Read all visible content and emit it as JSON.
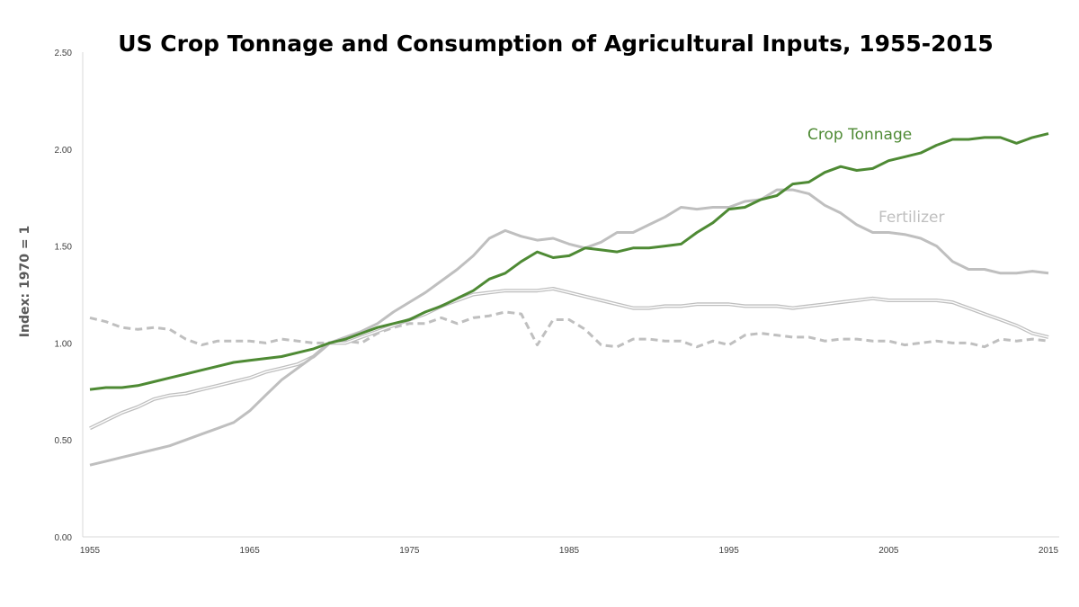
{
  "chart_data": {
    "type": "line",
    "title": "US Crop Tonnage and Consumption of Agricultural Inputs, 1955-2015",
    "xlabel": "",
    "ylabel": "Index: 1970 = 1",
    "xlim": [
      1955,
      2015
    ],
    "ylim": [
      0,
      2.5
    ],
    "y_ticks": [
      "0.00",
      "0.50",
      "1.00",
      "1.50",
      "2.00",
      "2.50"
    ],
    "x_ticks": [
      "1955",
      "1965",
      "1975",
      "1985",
      "1995",
      "2005",
      "2015"
    ],
    "x_tick_values": [
      1955,
      1965,
      1975,
      1985,
      1995,
      2005,
      2015
    ],
    "grid": false,
    "legend": "none",
    "x": [
      1955,
      1956,
      1957,
      1958,
      1959,
      1960,
      1961,
      1962,
      1963,
      1964,
      1965,
      1966,
      1967,
      1968,
      1969,
      1970,
      1971,
      1972,
      1973,
      1974,
      1975,
      1976,
      1977,
      1978,
      1979,
      1980,
      1981,
      1982,
      1983,
      1984,
      1985,
      1986,
      1987,
      1988,
      1989,
      1990,
      1991,
      1992,
      1993,
      1994,
      1995,
      1996,
      1997,
      1998,
      1999,
      2000,
      2001,
      2002,
      2003,
      2004,
      2005,
      2006,
      2007,
      2008,
      2009,
      2010,
      2011,
      2012,
      2013,
      2014,
      2015
    ],
    "series": [
      {
        "label": "Crop Tonnage",
        "color": "#4e8a34",
        "style": "solid",
        "values": [
          0.76,
          0.77,
          0.77,
          0.78,
          0.8,
          0.82,
          0.84,
          0.86,
          0.88,
          0.9,
          0.91,
          0.92,
          0.93,
          0.95,
          0.97,
          1.0,
          1.02,
          1.05,
          1.08,
          1.1,
          1.12,
          1.16,
          1.19,
          1.23,
          1.27,
          1.33,
          1.36,
          1.42,
          1.47,
          1.44,
          1.45,
          1.49,
          1.48,
          1.47,
          1.49,
          1.49,
          1.5,
          1.51,
          1.57,
          1.62,
          1.69,
          1.7,
          1.74,
          1.76,
          1.82,
          1.83,
          1.88,
          1.91,
          1.89,
          1.9,
          1.94,
          1.96,
          1.98,
          2.02,
          2.05,
          2.05,
          2.06,
          2.06,
          2.03,
          2.06,
          2.08
        ]
      },
      {
        "label": "Fertilizer",
        "color": "#bfbfbf",
        "style": "solid",
        "values": [
          0.37,
          0.39,
          0.41,
          0.43,
          0.45,
          0.47,
          0.5,
          0.53,
          0.56,
          0.59,
          0.65,
          0.73,
          0.81,
          0.87,
          0.93,
          1.0,
          1.03,
          1.06,
          1.1,
          1.16,
          1.21,
          1.26,
          1.32,
          1.38,
          1.45,
          1.54,
          1.58,
          1.55,
          1.53,
          1.54,
          1.51,
          1.49,
          1.52,
          1.57,
          1.57,
          1.61,
          1.65,
          1.7,
          1.69,
          1.7,
          1.7,
          1.73,
          1.74,
          1.79,
          1.79,
          1.77,
          1.71,
          1.67,
          1.61,
          1.57,
          1.57,
          1.56,
          1.54,
          1.5,
          1.42,
          1.38,
          1.38,
          1.36,
          1.36,
          1.37,
          1.36
        ]
      },
      {
        "color": "#bfbfbf",
        "style": "double",
        "values": [
          0.56,
          0.6,
          0.64,
          0.67,
          0.71,
          0.73,
          0.74,
          0.76,
          0.78,
          0.8,
          0.82,
          0.85,
          0.87,
          0.89,
          0.93,
          1.0,
          1.0,
          1.03,
          1.06,
          1.09,
          1.12,
          1.15,
          1.19,
          1.22,
          1.25,
          1.26,
          1.27,
          1.27,
          1.27,
          1.28,
          1.26,
          1.24,
          1.22,
          1.2,
          1.18,
          1.18,
          1.19,
          1.19,
          1.2,
          1.2,
          1.2,
          1.19,
          1.19,
          1.19,
          1.18,
          1.19,
          1.2,
          1.21,
          1.22,
          1.23,
          1.22,
          1.22,
          1.22,
          1.22,
          1.21,
          1.18,
          1.15,
          1.12,
          1.09,
          1.05,
          1.03
        ]
      },
      {
        "color": "#bfbfbf",
        "style": "dashed",
        "values": [
          1.13,
          1.11,
          1.08,
          1.07,
          1.08,
          1.07,
          1.02,
          0.99,
          1.01,
          1.01,
          1.01,
          1.0,
          1.02,
          1.01,
          1.0,
          1.0,
          1.01,
          1.0,
          1.05,
          1.08,
          1.1,
          1.1,
          1.13,
          1.1,
          1.13,
          1.14,
          1.16,
          1.15,
          0.99,
          1.12,
          1.12,
          1.07,
          0.99,
          0.98,
          1.02,
          1.02,
          1.01,
          1.01,
          0.98,
          1.01,
          0.99,
          1.04,
          1.05,
          1.04,
          1.03,
          1.03,
          1.01,
          1.02,
          1.02,
          1.01,
          1.01,
          0.99,
          1.0,
          1.01,
          1.0,
          1.0,
          0.98,
          1.02,
          1.01,
          1.02,
          1.01
        ]
      }
    ]
  }
}
